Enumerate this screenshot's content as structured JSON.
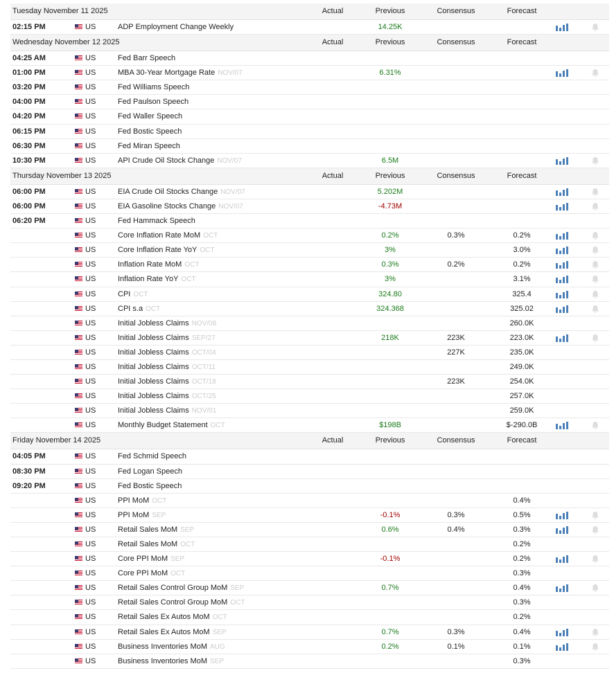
{
  "columns": [
    "Actual",
    "Previous",
    "Consensus",
    "Forecast"
  ],
  "days": [
    {
      "date": "Tuesday November 11 2025",
      "rows": [
        {
          "time": "02:15 PM",
          "country": "US",
          "event": "ADP Employment Change Weekly",
          "previous": "14.25K"
        }
      ]
    },
    {
      "date": "Wednesday November 12 2025",
      "rows": [
        {
          "time": "04:25 AM",
          "country": "US",
          "event": "Fed Barr Speech"
        },
        {
          "time": "01:00 PM",
          "country": "US",
          "event": "MBA 30-Year Mortgage Rate",
          "ref": "NOV/07",
          "previous": "6.31%"
        },
        {
          "time": "03:20 PM",
          "country": "US",
          "event": "Fed Williams Speech"
        },
        {
          "time": "04:00 PM",
          "country": "US",
          "event": "Fed Paulson Speech"
        },
        {
          "time": "04:20 PM",
          "country": "US",
          "event": "Fed Waller Speech"
        },
        {
          "time": "06:15 PM",
          "country": "US",
          "event": "Fed Bostic Speech"
        },
        {
          "time": "06:30 PM",
          "country": "US",
          "event": "Fed Miran Speech"
        },
        {
          "time": "10:30 PM",
          "country": "US",
          "event": "API Crude Oil Stock Change",
          "ref": "NOV/07",
          "previous": "6.5M"
        }
      ]
    },
    {
      "date": "Thursday November 13 2025",
      "rows": [
        {
          "time": "06:00 PM",
          "country": "US",
          "event": "EIA Crude Oil Stocks Change",
          "ref": "NOV/07",
          "previous": "5.202M"
        },
        {
          "time": "06:00 PM",
          "country": "US",
          "event": "EIA Gasoline Stocks Change",
          "ref": "NOV/07",
          "previous": "-4.73M"
        },
        {
          "time": "06:20 PM",
          "country": "US",
          "event": "Fed Hammack Speech"
        },
        {
          "country": "US",
          "event": "Core Inflation Rate MoM",
          "ref": "OCT",
          "previous": "0.2%",
          "consensus": "0.3%",
          "forecast": "0.2%"
        },
        {
          "country": "US",
          "event": "Core Inflation Rate YoY",
          "ref": "OCT",
          "previous": "3%",
          "forecast": "3.0%"
        },
        {
          "country": "US",
          "event": "Inflation Rate MoM",
          "ref": "OCT",
          "previous": "0.3%",
          "consensus": "0.2%",
          "forecast": "0.2%"
        },
        {
          "country": "US",
          "event": "Inflation Rate YoY",
          "ref": "OCT",
          "previous": "3%",
          "forecast": "3.1%"
        },
        {
          "country": "US",
          "event": "CPI",
          "ref": "OCT",
          "previous": "324.80",
          "forecast": "325.4"
        },
        {
          "country": "US",
          "event": "CPI s.a",
          "ref": "OCT",
          "previous": "324.368",
          "forecast": "325.02"
        },
        {
          "country": "US",
          "event": "Initial Jobless Claims",
          "ref": "NOV/08",
          "forecast": "260.0K"
        },
        {
          "country": "US",
          "event": "Initial Jobless Claims",
          "ref": "SEP/27",
          "previous": "218K",
          "consensus": "223K",
          "forecast": "223.0K"
        },
        {
          "country": "US",
          "event": "Initial Jobless Claims",
          "ref": "OCT/04",
          "consensus": "227K",
          "forecast": "235.0K"
        },
        {
          "country": "US",
          "event": "Initial Jobless Claims",
          "ref": "OCT/11",
          "forecast": "249.0K"
        },
        {
          "country": "US",
          "event": "Initial Jobless Claims",
          "ref": "OCT/18",
          "consensus": "223K",
          "forecast": "254.0K"
        },
        {
          "country": "US",
          "event": "Initial Jobless Claims",
          "ref": "OCT/25",
          "forecast": "257.0K"
        },
        {
          "country": "US",
          "event": "Initial Jobless Claims",
          "ref": "NOV/01",
          "forecast": "259.0K"
        },
        {
          "country": "US",
          "event": "Monthly Budget Statement",
          "ref": "OCT",
          "previous": "$198B",
          "forecast": "$-290.0B"
        }
      ]
    },
    {
      "date": "Friday November 14 2025",
      "rows": [
        {
          "time": "04:05 PM",
          "country": "US",
          "event": "Fed Schmid Speech"
        },
        {
          "time": "08:30 PM",
          "country": "US",
          "event": "Fed Logan Speech"
        },
        {
          "time": "09:20 PM",
          "country": "US",
          "event": "Fed Bostic Speech"
        },
        {
          "country": "US",
          "event": "PPI MoM",
          "ref": "OCT",
          "forecast": "0.4%"
        },
        {
          "country": "US",
          "event": "PPI MoM",
          "ref": "SEP",
          "previous": "-0.1%",
          "consensus": "0.3%",
          "forecast": "0.5%"
        },
        {
          "country": "US",
          "event": "Retail Sales MoM",
          "ref": "SEP",
          "previous": "0.6%",
          "consensus": "0.4%",
          "forecast": "0.3%"
        },
        {
          "country": "US",
          "event": "Retail Sales MoM",
          "ref": "OCT",
          "forecast": "0.2%"
        },
        {
          "country": "US",
          "event": "Core PPI MoM",
          "ref": "SEP",
          "previous": "-0.1%",
          "forecast": "0.2%"
        },
        {
          "country": "US",
          "event": "Core PPI MoM",
          "ref": "OCT",
          "forecast": "0.3%"
        },
        {
          "country": "US",
          "event": "Retail Sales Control Group MoM",
          "ref": "SEP",
          "previous": "0.7%",
          "forecast": "0.4%"
        },
        {
          "country": "US",
          "event": "Retail Sales Control Group MoM",
          "ref": "OCT",
          "forecast": "0.3%"
        },
        {
          "country": "US",
          "event": "Retail Sales Ex Autos MoM",
          "ref": "OCT",
          "forecast": "0.2%"
        },
        {
          "country": "US",
          "event": "Retail Sales Ex Autos MoM",
          "ref": "SEP",
          "previous": "0.7%",
          "consensus": "0.3%",
          "forecast": "0.4%"
        },
        {
          "country": "US",
          "event": "Business Inventories MoM",
          "ref": "AUG",
          "previous": "0.2%",
          "consensus": "0.1%",
          "forecast": "0.1%"
        },
        {
          "country": "US",
          "event": "Business Inventories MoM",
          "ref": "SEP",
          "forecast": "0.3%"
        }
      ]
    }
  ]
}
